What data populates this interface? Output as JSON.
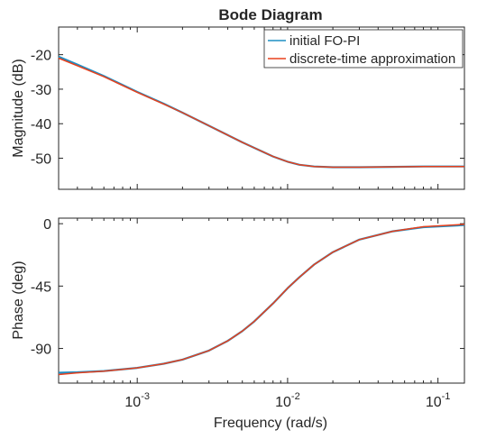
{
  "figure": {
    "title": "Bode Diagram",
    "xlabel": "Frequency (rad/s)"
  },
  "colors": {
    "initial": "#1f8fc4",
    "approx": "#e8401c",
    "axis": "#262626",
    "legend_border": "#262626"
  },
  "chart_data": [
    {
      "type": "line",
      "name": "magnitude",
      "ylabel": "Magnitude (dB)",
      "xscale": "log",
      "xlim": [
        0.0003,
        0.15
      ],
      "ylim": [
        -59,
        -12
      ],
      "yticks": [
        -20,
        -30,
        -40,
        -50
      ],
      "grid": false,
      "legend_position": "top-right",
      "series": [
        {
          "name": "initial FO-PI",
          "x": [
            0.0003,
            0.0004,
            0.0006,
            0.001,
            0.0015,
            0.002,
            0.003,
            0.004,
            0.005,
            0.006,
            0.008,
            0.01,
            0.012,
            0.015,
            0.02,
            0.03,
            0.05,
            0.08,
            0.15
          ],
          "y": [
            -20.6,
            -22.9,
            -26.2,
            -30.8,
            -34.2,
            -36.8,
            -40.6,
            -43.3,
            -45.4,
            -47.0,
            -49.5,
            -51.0,
            -51.9,
            -52.4,
            -52.6,
            -52.6,
            -52.5,
            -52.4,
            -52.4
          ]
        },
        {
          "name": "discrete-time approximation",
          "x": [
            0.0003,
            0.0004,
            0.0006,
            0.001,
            0.0015,
            0.002,
            0.003,
            0.004,
            0.005,
            0.006,
            0.008,
            0.01,
            0.012,
            0.015,
            0.02,
            0.03,
            0.05,
            0.08,
            0.15
          ],
          "y": [
            -21.0,
            -23.2,
            -26.4,
            -30.9,
            -34.3,
            -36.8,
            -40.6,
            -43.3,
            -45.4,
            -47.0,
            -49.5,
            -51.0,
            -51.9,
            -52.4,
            -52.6,
            -52.6,
            -52.5,
            -52.4,
            -52.4
          ]
        }
      ]
    },
    {
      "type": "line",
      "name": "phase",
      "ylabel": "Phase (deg)",
      "xscale": "log",
      "xlim": [
        0.0003,
        0.15
      ],
      "ylim": [
        -115,
        4
      ],
      "yticks": [
        0,
        -45,
        -90
      ],
      "xticks": [
        "10^-3",
        "10^-2",
        "10^-1"
      ],
      "grid": false,
      "series": [
        {
          "name": "initial FO-PI",
          "x": [
            0.0003,
            0.0004,
            0.0006,
            0.001,
            0.0015,
            0.002,
            0.003,
            0.004,
            0.005,
            0.006,
            0.008,
            0.01,
            0.012,
            0.015,
            0.02,
            0.03,
            0.05,
            0.08,
            0.15
          ],
          "y": [
            -107.5,
            -107.2,
            -106.3,
            -104.0,
            -101.0,
            -98.0,
            -91.5,
            -84.5,
            -77.5,
            -70.5,
            -57.5,
            -46.5,
            -38.5,
            -29.5,
            -20.5,
            -11.5,
            -5.5,
            -2.5,
            -1.0
          ]
        },
        {
          "name": "discrete-time approximation",
          "x": [
            0.0003,
            0.0004,
            0.0006,
            0.001,
            0.0015,
            0.002,
            0.003,
            0.004,
            0.005,
            0.006,
            0.008,
            0.01,
            0.012,
            0.015,
            0.02,
            0.03,
            0.05,
            0.08,
            0.15
          ],
          "y": [
            -108.8,
            -107.6,
            -106.4,
            -104.0,
            -101.0,
            -98.0,
            -91.5,
            -84.5,
            -77.5,
            -70.5,
            -57.5,
            -46.5,
            -38.5,
            -29.5,
            -20.5,
            -11.5,
            -5.5,
            -2.2,
            -0.5
          ]
        }
      ]
    }
  ]
}
